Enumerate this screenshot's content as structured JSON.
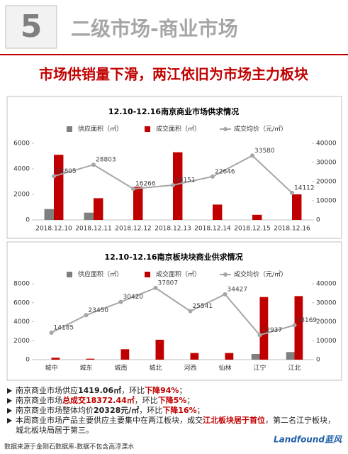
{
  "header": {
    "number": "5",
    "title": "二级市场-商业市场",
    "subtitle": "市场供销量下滑，两江依旧为市场主力板块"
  },
  "chart_data": [
    {
      "type": "bar",
      "title": "12.10-12.16南京商业市场供求情况",
      "categories": [
        "2018.12.10",
        "2018.12.11",
        "2018.12.12",
        "2018.12.13",
        "2018.12.14",
        "2018.12.15",
        "2018.12.16"
      ],
      "series": [
        {
          "name": "供应面积（㎡）",
          "color": "#7f7f7f",
          "values": [
            850,
            570,
            0,
            0,
            0,
            0,
            0
          ]
        },
        {
          "name": "成交面积（㎡）",
          "color": "#c00000",
          "values": [
            5100,
            1700,
            2600,
            5300,
            1200,
            400,
            2000
          ]
        },
        {
          "name": "成交均价（元/㎡）",
          "color": "#a6a6a6",
          "axis": "y2",
          "values": [
            22805,
            28803,
            16266,
            18151,
            22646,
            33580,
            14112
          ]
        }
      ],
      "ylim": [
        0,
        6000
      ],
      "yticks": [
        0,
        2000,
        4000,
        6000
      ],
      "y2lim": [
        0,
        40000
      ],
      "y2ticks": [
        0,
        10000,
        20000,
        30000,
        40000
      ],
      "legend": "top"
    },
    {
      "type": "bar",
      "title": "12.10-12.16南京板块块商业供求情况",
      "categories": [
        "城中",
        "城东",
        "城南",
        "城北",
        "河西",
        "仙林",
        "江宁",
        "江北"
      ],
      "series": [
        {
          "name": "供应面积（㎡）",
          "color": "#7f7f7f",
          "values": [
            0,
            0,
            0,
            0,
            0,
            0,
            600,
            800
          ]
        },
        {
          "name": "成交面积（㎡）",
          "color": "#c00000",
          "values": [
            200,
            100,
            1100,
            2100,
            700,
            700,
            6600,
            6700
          ]
        },
        {
          "name": "成交均价（元/㎡）",
          "color": "#a6a6a6",
          "axis": "y2",
          "values": [
            14185,
            23450,
            30420,
            37807,
            25541,
            34427,
            12937,
            18169
          ]
        }
      ],
      "ylim": [
        0,
        8000
      ],
      "yticks": [
        0,
        2000,
        4000,
        6000,
        8000
      ],
      "y2lim": [
        0,
        40000
      ],
      "y2ticks": [
        0,
        10000,
        20000,
        30000,
        40000
      ],
      "legend": "top"
    }
  ],
  "bullets": [
    [
      {
        "text": "南京商业市场供应",
        "style": "plain"
      },
      {
        "text": "1419.06㎡",
        "style": "bold"
      },
      {
        "text": "，环比",
        "style": "plain"
      },
      {
        "text": "下降94%",
        "style": "red"
      },
      {
        "text": "；",
        "style": "plain"
      }
    ],
    [
      {
        "text": "南京商业市场",
        "style": "plain"
      },
      {
        "text": "总成交18372.44㎡",
        "style": "red"
      },
      {
        "text": "，环比",
        "style": "plain"
      },
      {
        "text": "下降5%",
        "style": "red"
      },
      {
        "text": "；",
        "style": "plain"
      }
    ],
    [
      {
        "text": "南京商业市场整体均价",
        "style": "plain"
      },
      {
        "text": "20328元/㎡",
        "style": "bold"
      },
      {
        "text": "，环比",
        "style": "plain"
      },
      {
        "text": "下降16%",
        "style": "red"
      },
      {
        "text": "；",
        "style": "plain"
      }
    ],
    [
      {
        "text": "本周商业市场产品主要供应主要集中在两江板块，成交",
        "style": "plain"
      },
      {
        "text": "江北板块居于首位",
        "style": "red"
      },
      {
        "text": "，第二名江宁板块，城北板块局居于第三。",
        "style": "plain"
      }
    ]
  ],
  "footer": {
    "source": "数据来源于金刚石数据库-数据不包含高淳溧水",
    "logo": "Landfound蓝风"
  }
}
